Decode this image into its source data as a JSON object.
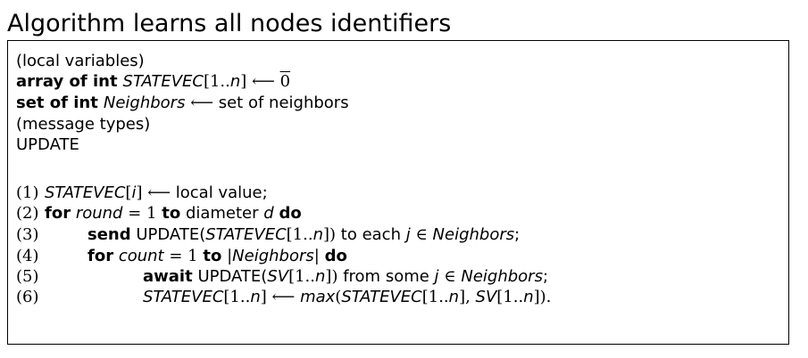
{
  "title": "Algorithm learns all nodes identifiers",
  "decl": {
    "local_vars": "(local variables)",
    "array_kw": "array of int",
    "array_name": "STATEVEC",
    "array_range": "[1..",
    "array_n": "n",
    "array_close": "]",
    "arrow": "⟵",
    "zero": "0",
    "set_kw": "set of int",
    "set_name": "Neighbors",
    "set_val": "set of neighbors",
    "msg_types": "(message types)",
    "update": "UPDATE"
  },
  "code": {
    "n1": "(1)",
    "l1_var": "STATEVEC",
    "l1_idx_open": "[",
    "l1_i": "i",
    "l1_idx_close": "]",
    "l1_rest": "local value;",
    "n2": "(2)",
    "kw_for": "for",
    "round": "round",
    "eq": "=",
    "one": "1",
    "kw_to": "to",
    "diameter": "diameter",
    "d": "d",
    "kw_do": "do",
    "n3": "(3)",
    "kw_send": "send",
    "update_open": "UPDATE(",
    "statevec": "STATEVEC",
    "range_open": "[1..",
    "n": "n",
    "range_close": "])",
    "to_each": "to each",
    "j": "j",
    "in": "∈",
    "neighbors": "Neighbors",
    "semicolon": ";",
    "n4": "(4)",
    "count": "count",
    "bar": "|",
    "n5": "(5)",
    "kw_await": "await",
    "sv": "SV",
    "from_some": "from some",
    "n6": "(6)",
    "range_close_single": "]",
    "max": "max",
    "paren_open": "(",
    "comma": ",",
    "close_final": "]).",
    "range_close_comma": "],"
  }
}
